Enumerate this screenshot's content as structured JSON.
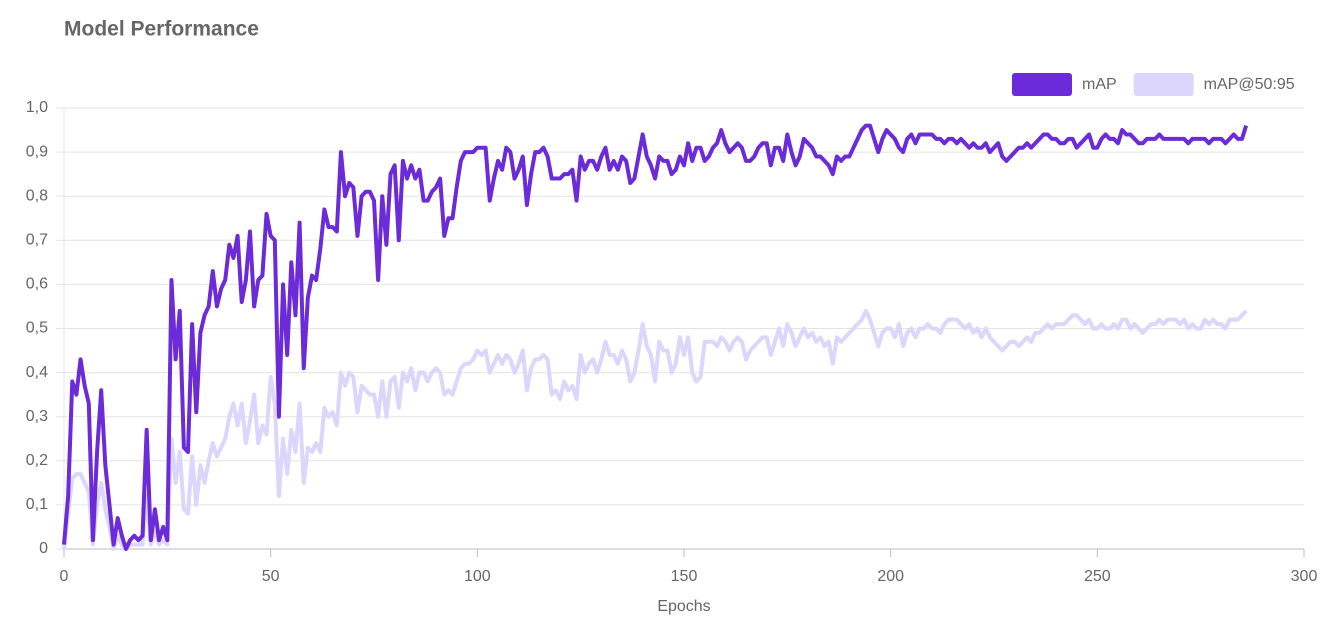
{
  "chart_data": {
    "type": "line",
    "title": "Model Performance",
    "x_label": "Epochs",
    "x": [
      0,
      1,
      2,
      3,
      4,
      5,
      6,
      7,
      8,
      9,
      10,
      11,
      12,
      13,
      14,
      15,
      16,
      17,
      18,
      19,
      20,
      21,
      22,
      23,
      24,
      25,
      26,
      27,
      28,
      29,
      30,
      31,
      32,
      33,
      34,
      35,
      36,
      37,
      38,
      39,
      40,
      41,
      42,
      43,
      44,
      45,
      46,
      47,
      48,
      49,
      50,
      51,
      52,
      53,
      54,
      55,
      56,
      57,
      58,
      59,
      60,
      61,
      62,
      63,
      64,
      65,
      66,
      67,
      68,
      69,
      70,
      71,
      72,
      73,
      74,
      75,
      76,
      77,
      78,
      79,
      80,
      81,
      82,
      83,
      84,
      85,
      86,
      87,
      88,
      89,
      90,
      91,
      92,
      93,
      94,
      95,
      96,
      97,
      98,
      99,
      100,
      101,
      102,
      103,
      104,
      105,
      106,
      107,
      108,
      109,
      110,
      111,
      112,
      113,
      114,
      115,
      116,
      117,
      118,
      119,
      120,
      121,
      122,
      123,
      124,
      125,
      126,
      127,
      128,
      129,
      130,
      131,
      132,
      133,
      134,
      135,
      136,
      137,
      138,
      139,
      140,
      141,
      142,
      143,
      144,
      145,
      146,
      147,
      148,
      149,
      150,
      151,
      152,
      153,
      154,
      155,
      156,
      157,
      158,
      159,
      160,
      161,
      162,
      163,
      164,
      165,
      166,
      167,
      168,
      169,
      170,
      171,
      172,
      173,
      174,
      175,
      176,
      177,
      178,
      179,
      180,
      181,
      182,
      183,
      184,
      185,
      186,
      187,
      188,
      189,
      190,
      191,
      192,
      193,
      194,
      195,
      196,
      197,
      198,
      199,
      200,
      201,
      202,
      203,
      204,
      205,
      206,
      207,
      208,
      209,
      210,
      211,
      212,
      213,
      214,
      215,
      216,
      217,
      218,
      219,
      220,
      221,
      222,
      223,
      224,
      225,
      226,
      227,
      228,
      229,
      230,
      231,
      232,
      233,
      234,
      235,
      236,
      237,
      238,
      239,
      240,
      241,
      242,
      243,
      244,
      245,
      246,
      247,
      248,
      249,
      250,
      251,
      252,
      253,
      254,
      255,
      256,
      257,
      258,
      259,
      260,
      261,
      262,
      263,
      264,
      265,
      266,
      267,
      268,
      269,
      270,
      271,
      272,
      273,
      274,
      275,
      276,
      277,
      278,
      279,
      280,
      281,
      282,
      283,
      284,
      285,
      286
    ],
    "series": [
      {
        "name": "mAP",
        "color": "#6c2bd9",
        "values": [
          0.01,
          0.12,
          0.38,
          0.35,
          0.43,
          0.37,
          0.33,
          0.02,
          0.22,
          0.36,
          0.19,
          0.1,
          0.01,
          0.07,
          0.03,
          0.0,
          0.02,
          0.03,
          0.02,
          0.03,
          0.27,
          0.02,
          0.09,
          0.02,
          0.05,
          0.02,
          0.61,
          0.43,
          0.54,
          0.23,
          0.22,
          0.51,
          0.31,
          0.49,
          0.53,
          0.55,
          0.63,
          0.55,
          0.59,
          0.61,
          0.69,
          0.66,
          0.71,
          0.56,
          0.61,
          0.72,
          0.55,
          0.61,
          0.62,
          0.76,
          0.71,
          0.7,
          0.3,
          0.6,
          0.44,
          0.65,
          0.53,
          0.74,
          0.41,
          0.57,
          0.62,
          0.61,
          0.68,
          0.77,
          0.73,
          0.73,
          0.72,
          0.9,
          0.8,
          0.83,
          0.82,
          0.71,
          0.8,
          0.81,
          0.81,
          0.79,
          0.61,
          0.8,
          0.69,
          0.85,
          0.87,
          0.7,
          0.88,
          0.84,
          0.87,
          0.84,
          0.86,
          0.79,
          0.79,
          0.81,
          0.82,
          0.84,
          0.71,
          0.75,
          0.75,
          0.82,
          0.88,
          0.9,
          0.9,
          0.9,
          0.91,
          0.91,
          0.91,
          0.79,
          0.84,
          0.88,
          0.86,
          0.91,
          0.9,
          0.84,
          0.86,
          0.89,
          0.78,
          0.85,
          0.9,
          0.9,
          0.91,
          0.89,
          0.84,
          0.84,
          0.84,
          0.85,
          0.85,
          0.86,
          0.79,
          0.89,
          0.86,
          0.88,
          0.88,
          0.86,
          0.89,
          0.91,
          0.86,
          0.88,
          0.86,
          0.89,
          0.88,
          0.83,
          0.84,
          0.89,
          0.94,
          0.89,
          0.87,
          0.84,
          0.89,
          0.88,
          0.88,
          0.85,
          0.86,
          0.89,
          0.87,
          0.92,
          0.88,
          0.91,
          0.91,
          0.88,
          0.89,
          0.91,
          0.92,
          0.95,
          0.92,
          0.9,
          0.91,
          0.92,
          0.91,
          0.88,
          0.88,
          0.89,
          0.91,
          0.92,
          0.92,
          0.87,
          0.91,
          0.91,
          0.88,
          0.94,
          0.9,
          0.87,
          0.89,
          0.93,
          0.92,
          0.91,
          0.89,
          0.89,
          0.88,
          0.87,
          0.85,
          0.89,
          0.88,
          0.89,
          0.89,
          0.91,
          0.93,
          0.95,
          0.96,
          0.96,
          0.93,
          0.9,
          0.93,
          0.95,
          0.94,
          0.93,
          0.91,
          0.9,
          0.93,
          0.94,
          0.92,
          0.94,
          0.94,
          0.94,
          0.94,
          0.93,
          0.93,
          0.92,
          0.93,
          0.93,
          0.92,
          0.93,
          0.92,
          0.91,
          0.92,
          0.91,
          0.91,
          0.92,
          0.9,
          0.91,
          0.92,
          0.89,
          0.88,
          0.89,
          0.9,
          0.91,
          0.91,
          0.92,
          0.91,
          0.92,
          0.93,
          0.94,
          0.94,
          0.93,
          0.93,
          0.92,
          0.92,
          0.93,
          0.93,
          0.91,
          0.92,
          0.93,
          0.94,
          0.91,
          0.91,
          0.93,
          0.94,
          0.93,
          0.93,
          0.92,
          0.95,
          0.94,
          0.94,
          0.93,
          0.92,
          0.92,
          0.93,
          0.93,
          0.93,
          0.94,
          0.93,
          0.93,
          0.93,
          0.93,
          0.93,
          0.93,
          0.92,
          0.93,
          0.93,
          0.93,
          0.93,
          0.92,
          0.93,
          0.93,
          0.93,
          0.92,
          0.93,
          0.94,
          0.93,
          0.93,
          0.96
        ]
      },
      {
        "name": "mAP@50:95",
        "color": "#dcd6fc",
        "values": [
          0.0,
          0.08,
          0.16,
          0.17,
          0.17,
          0.15,
          0.13,
          0.01,
          0.1,
          0.15,
          0.09,
          0.05,
          0.0,
          0.03,
          0.01,
          0.0,
          0.01,
          0.01,
          0.01,
          0.01,
          0.12,
          0.01,
          0.04,
          0.01,
          0.02,
          0.01,
          0.25,
          0.15,
          0.22,
          0.09,
          0.08,
          0.21,
          0.1,
          0.19,
          0.15,
          0.2,
          0.24,
          0.21,
          0.23,
          0.25,
          0.3,
          0.33,
          0.28,
          0.33,
          0.24,
          0.29,
          0.35,
          0.24,
          0.28,
          0.26,
          0.39,
          0.33,
          0.12,
          0.25,
          0.17,
          0.27,
          0.22,
          0.33,
          0.15,
          0.23,
          0.22,
          0.24,
          0.22,
          0.32,
          0.3,
          0.31,
          0.28,
          0.4,
          0.37,
          0.4,
          0.39,
          0.31,
          0.37,
          0.36,
          0.35,
          0.35,
          0.3,
          0.38,
          0.3,
          0.38,
          0.39,
          0.32,
          0.4,
          0.38,
          0.41,
          0.36,
          0.4,
          0.4,
          0.38,
          0.4,
          0.41,
          0.4,
          0.35,
          0.36,
          0.35,
          0.38,
          0.41,
          0.42,
          0.42,
          0.43,
          0.45,
          0.44,
          0.45,
          0.4,
          0.42,
          0.44,
          0.42,
          0.44,
          0.43,
          0.4,
          0.42,
          0.45,
          0.36,
          0.41,
          0.43,
          0.43,
          0.44,
          0.43,
          0.35,
          0.36,
          0.34,
          0.38,
          0.36,
          0.37,
          0.34,
          0.44,
          0.4,
          0.42,
          0.43,
          0.4,
          0.43,
          0.47,
          0.44,
          0.44,
          0.42,
          0.45,
          0.43,
          0.38,
          0.4,
          0.45,
          0.51,
          0.46,
          0.44,
          0.38,
          0.47,
          0.45,
          0.45,
          0.4,
          0.42,
          0.48,
          0.44,
          0.48,
          0.4,
          0.38,
          0.39,
          0.47,
          0.47,
          0.47,
          0.46,
          0.48,
          0.47,
          0.45,
          0.47,
          0.48,
          0.47,
          0.43,
          0.45,
          0.46,
          0.47,
          0.48,
          0.48,
          0.44,
          0.47,
          0.5,
          0.46,
          0.51,
          0.49,
          0.46,
          0.48,
          0.5,
          0.48,
          0.49,
          0.47,
          0.48,
          0.46,
          0.47,
          0.42,
          0.48,
          0.47,
          0.48,
          0.49,
          0.5,
          0.51,
          0.52,
          0.54,
          0.52,
          0.49,
          0.46,
          0.49,
          0.5,
          0.5,
          0.48,
          0.51,
          0.46,
          0.49,
          0.5,
          0.48,
          0.5,
          0.5,
          0.51,
          0.5,
          0.5,
          0.49,
          0.51,
          0.52,
          0.52,
          0.52,
          0.51,
          0.5,
          0.51,
          0.49,
          0.5,
          0.48,
          0.5,
          0.48,
          0.47,
          0.46,
          0.45,
          0.46,
          0.47,
          0.47,
          0.46,
          0.47,
          0.48,
          0.47,
          0.49,
          0.49,
          0.5,
          0.51,
          0.5,
          0.51,
          0.51,
          0.51,
          0.52,
          0.53,
          0.53,
          0.52,
          0.51,
          0.52,
          0.5,
          0.5,
          0.51,
          0.5,
          0.5,
          0.51,
          0.5,
          0.52,
          0.52,
          0.5,
          0.51,
          0.5,
          0.49,
          0.5,
          0.51,
          0.51,
          0.52,
          0.51,
          0.52,
          0.52,
          0.52,
          0.51,
          0.52,
          0.5,
          0.51,
          0.5,
          0.5,
          0.52,
          0.51,
          0.52,
          0.51,
          0.51,
          0.5,
          0.52,
          0.52,
          0.52,
          0.53,
          0.54
        ]
      }
    ],
    "xlim": [
      0,
      300
    ],
    "xticks": [
      0,
      50,
      100,
      150,
      200,
      250,
      300
    ],
    "ylim": [
      0,
      1
    ],
    "yticks": [
      0,
      {
        "value": 0.1,
        "label": "0,1"
      },
      {
        "value": 0.2,
        "label": "0,2"
      },
      {
        "value": 0.3,
        "label": "0,3"
      },
      {
        "value": 0.4,
        "label": "0,4"
      },
      {
        "value": 0.5,
        "label": "0,5"
      },
      {
        "value": 0.6,
        "label": "0,6"
      },
      {
        "value": 0.7,
        "label": "0,7"
      },
      {
        "value": 0.8,
        "label": "0,8"
      },
      {
        "value": 0.9,
        "label": "0,9"
      },
      {
        "value": 1,
        "label": "1,0"
      }
    ],
    "grid": true,
    "legend": "top-right"
  }
}
